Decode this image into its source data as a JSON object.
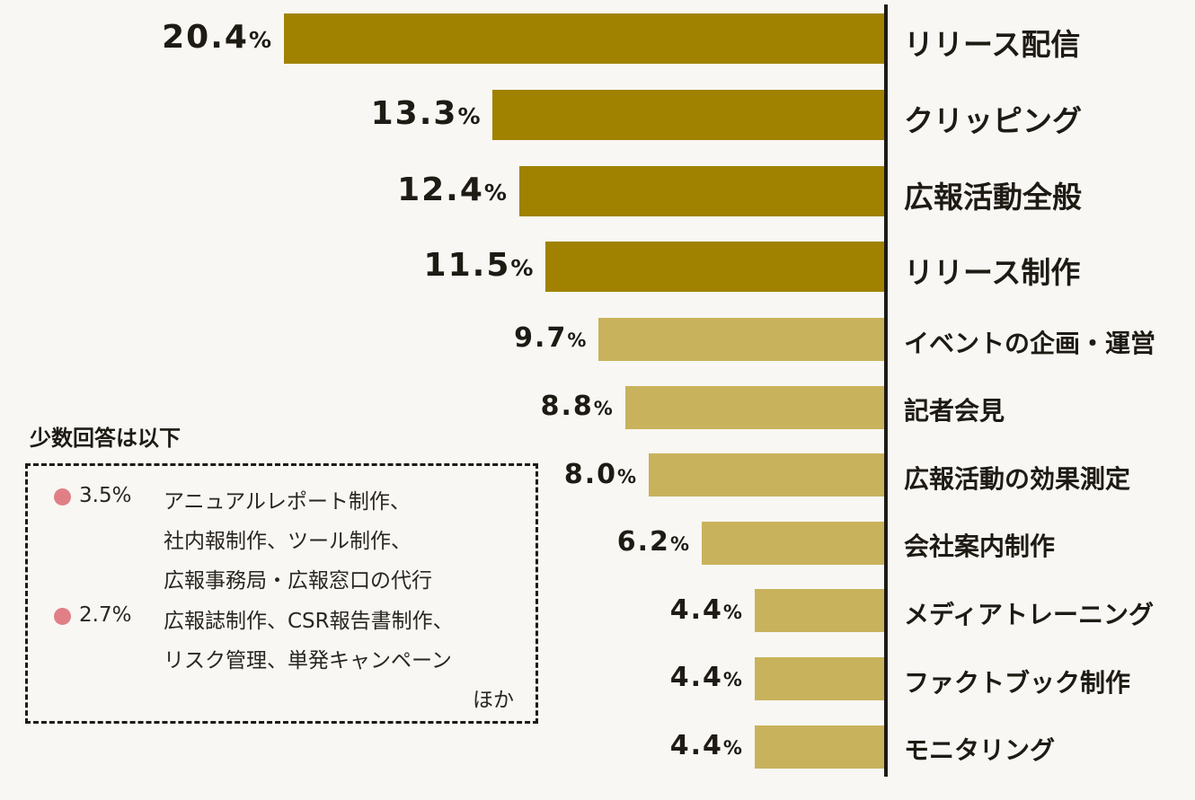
{
  "chart_data": {
    "type": "bar",
    "orientation": "horizontal",
    "categories": [
      "リリース配信",
      "クリッピング",
      "広報活動全般",
      "リリース制作",
      "イベントの企画・運営",
      "記者会見",
      "広報活動の効果測定",
      "会社案内制作",
      "メディアトレーニング",
      "ファクトブック制作",
      "モニタリング"
    ],
    "values": [
      20.4,
      13.3,
      12.4,
      11.5,
      9.7,
      8.8,
      8.0,
      6.2,
      4.4,
      4.4,
      4.4
    ],
    "value_labels": [
      "20.4",
      "13.3",
      "12.4",
      "11.5",
      "9.7",
      "8.8",
      "8.0",
      "6.2",
      "4.4",
      "4.4",
      "4.4"
    ],
    "unit": "%",
    "highlighted_top": 4,
    "colors": {
      "highlight": "#a08200",
      "normal": "#c9b25c",
      "text": "#1e1a14"
    },
    "title": "",
    "xlabel": "",
    "ylabel": "",
    "xlim": [
      0,
      20.4
    ],
    "grid": false
  },
  "note": {
    "title": "少数回答は以下",
    "items": [
      {
        "percent": "3.5%",
        "lines": [
          "アニュアルレポート制作、",
          "社内報制作、ツール制作、",
          "広報事務局・広報窓口の代行"
        ]
      },
      {
        "percent": "2.7%",
        "lines": [
          "広報誌制作、CSR報告書制作、",
          "リスク管理、単発キャンペーン"
        ]
      }
    ],
    "tail": "ほか",
    "dot_color": "#e07f86"
  }
}
